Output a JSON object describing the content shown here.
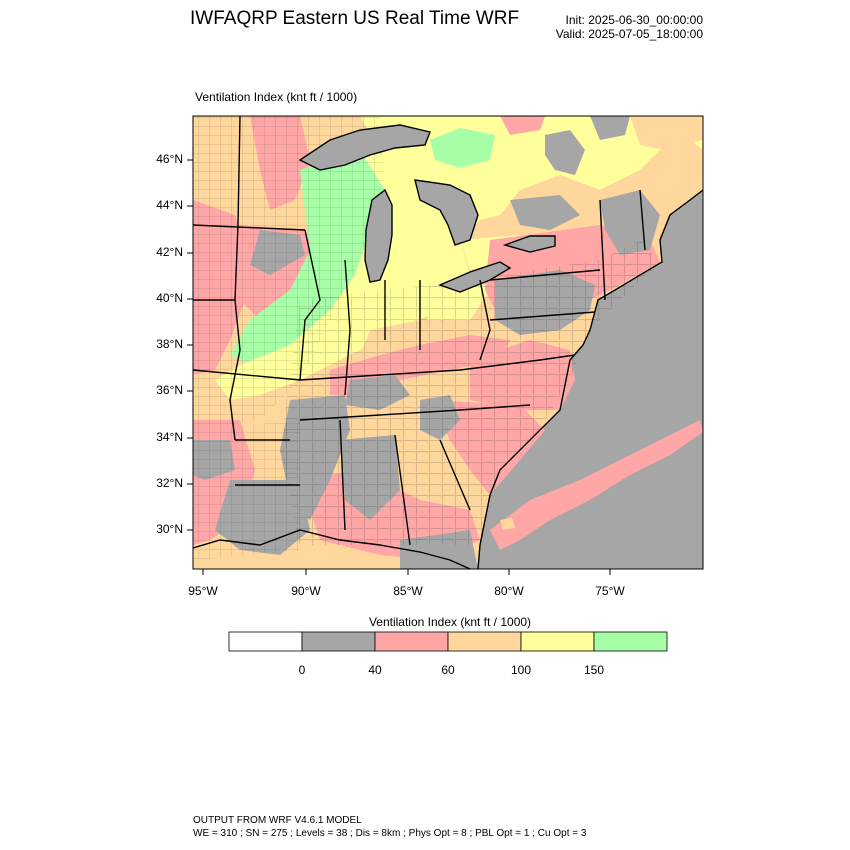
{
  "header": {
    "title": "IWFAQRP Eastern US Real Time WRF",
    "init": "Init: 2025-06-30_00:00:00",
    "valid": "Valid: 2025-07-05_18:00:00"
  },
  "map": {
    "field_title": "Ventilation Index   (knt ft / 1000)",
    "lat_labels": [
      "46°N",
      "44°N",
      "42°N",
      "40°N",
      "38°N",
      "36°N",
      "34°N",
      "32°N",
      "30°N"
    ],
    "lon_labels": [
      "95°W",
      "90°W",
      "85°W",
      "80°W",
      "75°W"
    ],
    "category_colors": {
      "lt0": "#ffffff",
      "0_40": "#a6a6a6",
      "40_60": "#ffa6a6",
      "60_100": "#ffd79c",
      "100_150": "#ffff9c",
      "gt150": "#a6ffa6",
      "water": "#a6a6a6",
      "borders": "#000000"
    }
  },
  "colorbar": {
    "title": "Ventilation Index  (knt ft / 1000)",
    "tick_labels": [
      "0",
      "40",
      "60",
      "100",
      "150"
    ],
    "colors": [
      "#ffffff",
      "#a6a6a6",
      "#ffa6a6",
      "#ffd79c",
      "#ffff9c",
      "#a6ffa6"
    ]
  },
  "footer": {
    "line1": "OUTPUT FROM WRF V4.6.1 MODEL",
    "line2": "WE = 310 ; SN = 275 ; Levels = 38 ; Dis = 8km ; Phys Opt = 8 ; PBL Opt = 1 ; Cu Opt = 3"
  }
}
